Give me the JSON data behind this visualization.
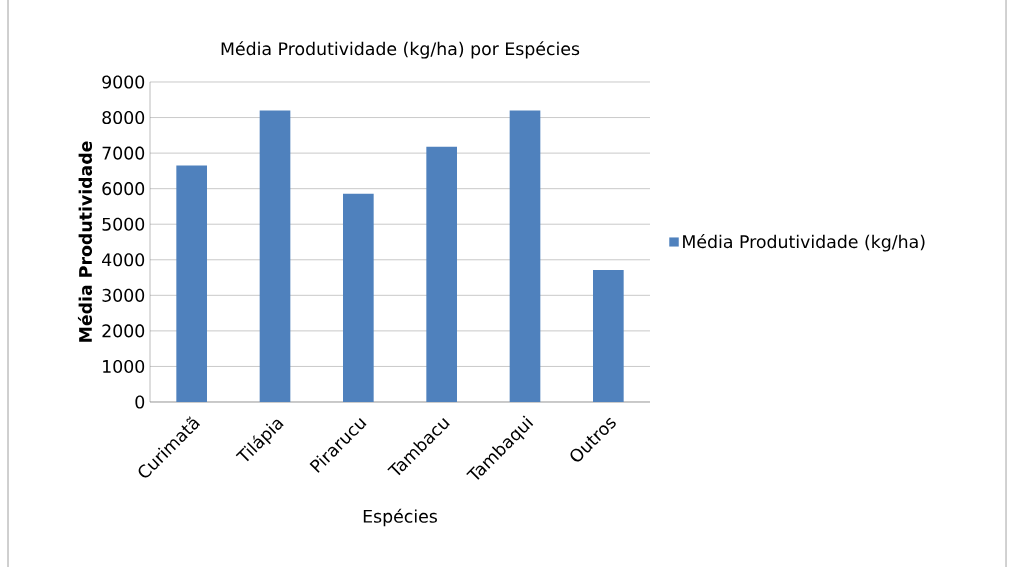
{
  "chart_data": {
    "type": "bar",
    "title": "Média Produtividade (kg/ha) por Espécies",
    "xlabel": "Espécies",
    "ylabel": "Média Produtividade",
    "categories": [
      "Curimatã",
      "Tilápia",
      "Pirarucu",
      "Tambacu",
      "Tambaqui",
      "Outros"
    ],
    "series": [
      {
        "name": "Média Produtividade (kg/ha)",
        "color": "#4f81bd",
        "values": [
          6650,
          8200,
          5860,
          7180,
          8200,
          3710
        ]
      }
    ],
    "ylim": [
      0,
      9000
    ],
    "yticks": [
      0,
      1000,
      2000,
      3000,
      4000,
      5000,
      6000,
      7000,
      8000,
      9000
    ],
    "grid": "y",
    "legend": "right"
  }
}
